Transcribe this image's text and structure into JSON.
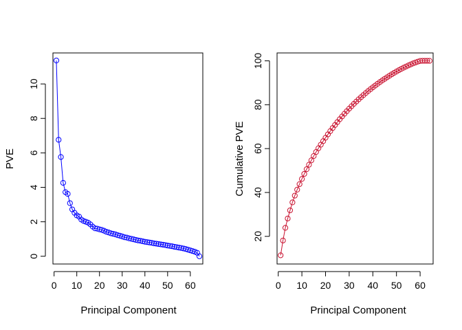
{
  "chart_data": [
    {
      "type": "line",
      "xlabel": "Principal Component",
      "ylabel": "PVE",
      "xlim": [
        -0.5,
        65.5
      ],
      "ylim": [
        -0.45,
        11.8
      ],
      "xticks": [
        0,
        10,
        20,
        30,
        40,
        50,
        60
      ],
      "xtick_labels": [
        "0",
        "10",
        "20",
        "30",
        "40",
        "50",
        "60"
      ],
      "yticks": [
        0,
        2,
        4,
        6,
        8,
        10
      ],
      "ytick_labels": [
        "0",
        "2",
        "4",
        "6",
        "8",
        "10"
      ],
      "color": "#0000ff",
      "x": [
        1,
        2,
        3,
        4,
        5,
        6,
        7,
        8,
        9,
        10,
        11,
        12,
        13,
        14,
        15,
        16,
        17,
        18,
        19,
        20,
        21,
        22,
        23,
        24,
        25,
        26,
        27,
        28,
        29,
        30,
        31,
        32,
        33,
        34,
        35,
        36,
        37,
        38,
        39,
        40,
        41,
        42,
        43,
        44,
        45,
        46,
        47,
        48,
        49,
        50,
        51,
        52,
        53,
        54,
        55,
        56,
        57,
        58,
        59,
        60,
        61,
        62,
        63,
        64
      ],
      "values": [
        11.36,
        6.76,
        5.76,
        4.26,
        3.72,
        3.62,
        3.08,
        2.72,
        2.52,
        2.37,
        2.3,
        2.13,
        2.05,
        2.0,
        1.95,
        1.85,
        1.72,
        1.62,
        1.6,
        1.56,
        1.53,
        1.48,
        1.42,
        1.38,
        1.33,
        1.3,
        1.27,
        1.22,
        1.19,
        1.15,
        1.1,
        1.08,
        1.04,
        1.01,
        0.98,
        0.95,
        0.92,
        0.9,
        0.87,
        0.84,
        0.82,
        0.8,
        0.78,
        0.75,
        0.73,
        0.71,
        0.69,
        0.67,
        0.65,
        0.62,
        0.6,
        0.58,
        0.55,
        0.53,
        0.5,
        0.48,
        0.45,
        0.42,
        0.38,
        0.34,
        0.3,
        0.26,
        0.2,
        0.0
      ]
    },
    {
      "type": "line",
      "xlabel": "Principal Component",
      "ylabel": "Cumulative PVE",
      "xlim": [
        -0.5,
        65.5
      ],
      "ylim": [
        7.4,
        103.6
      ],
      "xticks": [
        0,
        10,
        20,
        30,
        40,
        50,
        60
      ],
      "xtick_labels": [
        "0",
        "10",
        "20",
        "30",
        "40",
        "50",
        "60"
      ],
      "yticks": [
        20,
        40,
        60,
        80,
        100
      ],
      "ytick_labels": [
        "20",
        "40",
        "60",
        "80",
        "100"
      ],
      "color": "#c8102e",
      "x": [
        1,
        2,
        3,
        4,
        5,
        6,
        7,
        8,
        9,
        10,
        11,
        12,
        13,
        14,
        15,
        16,
        17,
        18,
        19,
        20,
        21,
        22,
        23,
        24,
        25,
        26,
        27,
        28,
        29,
        30,
        31,
        32,
        33,
        34,
        35,
        36,
        37,
        38,
        39,
        40,
        41,
        42,
        43,
        44,
        45,
        46,
        47,
        48,
        49,
        50,
        51,
        52,
        53,
        54,
        55,
        56,
        57,
        58,
        59,
        60,
        61,
        62,
        63,
        64
      ],
      "values": [
        11.36,
        18.12,
        23.88,
        28.14,
        31.86,
        35.48,
        38.56,
        41.28,
        43.8,
        46.17,
        48.47,
        50.6,
        52.65,
        54.65,
        56.6,
        58.45,
        60.17,
        61.79,
        63.39,
        64.95,
        66.48,
        67.96,
        69.38,
        70.76,
        72.09,
        73.39,
        74.66,
        75.88,
        77.07,
        78.22,
        79.32,
        80.4,
        81.44,
        82.45,
        83.43,
        84.38,
        85.3,
        86.2,
        87.07,
        87.91,
        88.73,
        89.53,
        90.31,
        91.06,
        91.79,
        92.5,
        93.19,
        93.86,
        94.51,
        95.13,
        95.73,
        96.31,
        96.86,
        97.39,
        97.89,
        98.37,
        98.82,
        99.24,
        99.62,
        99.96,
        100.0,
        100.0,
        100.0,
        100.0
      ]
    }
  ]
}
